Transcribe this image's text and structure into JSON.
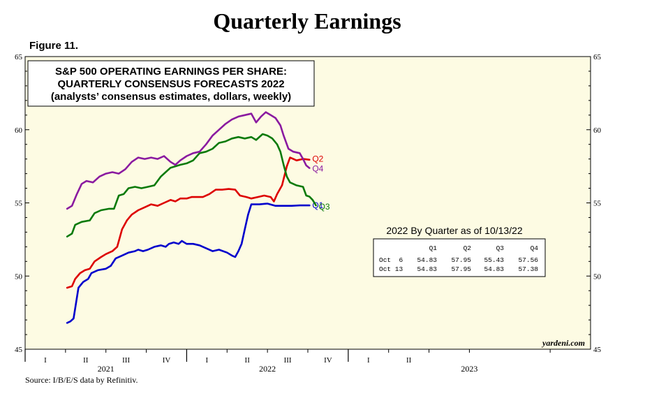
{
  "header": {
    "title": "Quarterly Earnings",
    "figure": "Figure 11.",
    "source": "Source: I/B/E/S data by Refinitiv."
  },
  "chart_data": {
    "type": "line",
    "box_lines": [
      "S&P 500 OPERATING EARNINGS PER SHARE:",
      "QUARTERLY CONSENSUS FORECASTS 2022",
      "(analysts’ consensus estimates, dollars, weekly)"
    ],
    "credit": "yardeni.com",
    "ylim": [
      45,
      65
    ],
    "yticks": [
      45,
      50,
      55,
      60,
      65
    ],
    "xlim": [
      2020.0,
      2023.5
    ],
    "quarter_ticks": [
      {
        "label": "I",
        "x": 2020.125
      },
      {
        "label": "II",
        "x": 2020.375
      },
      {
        "label": "III",
        "x": 2020.625
      },
      {
        "label": "IV",
        "x": 2020.875
      },
      {
        "label": "I",
        "x": 2021.125
      },
      {
        "label": "II",
        "x": 2021.375
      },
      {
        "label": "III",
        "x": 2021.625
      },
      {
        "label": "IV",
        "x": 2021.875
      },
      {
        "label": "I",
        "x": 2022.125
      },
      {
        "label": "II",
        "x": 2022.375
      }
    ],
    "year_labels": [
      {
        "label": "2021",
        "x": 2020.5
      },
      {
        "label": "2022",
        "x": 2021.5
      },
      {
        "label": "2023",
        "x": 2022.75
      }
    ],
    "series": [
      {
        "name": "Q1",
        "label": "Q1",
        "color": "#0000cc",
        "points": [
          [
            2020.26,
            46.8
          ],
          [
            2020.28,
            46.9
          ],
          [
            2020.3,
            47.1
          ],
          [
            2020.33,
            49.2
          ],
          [
            2020.36,
            49.6
          ],
          [
            2020.39,
            49.8
          ],
          [
            2020.41,
            50.2
          ],
          [
            2020.45,
            50.4
          ],
          [
            2020.5,
            50.5
          ],
          [
            2020.53,
            50.7
          ],
          [
            2020.56,
            51.2
          ],
          [
            2020.6,
            51.4
          ],
          [
            2020.64,
            51.6
          ],
          [
            2020.68,
            51.7
          ],
          [
            2020.7,
            51.8
          ],
          [
            2020.73,
            51.7
          ],
          [
            2020.76,
            51.8
          ],
          [
            2020.8,
            52.0
          ],
          [
            2020.84,
            52.1
          ],
          [
            2020.87,
            52.0
          ],
          [
            2020.89,
            52.2
          ],
          [
            2020.92,
            52.3
          ],
          [
            2020.95,
            52.2
          ],
          [
            2020.97,
            52.4
          ],
          [
            2021.0,
            52.2
          ],
          [
            2021.04,
            52.2
          ],
          [
            2021.08,
            52.1
          ],
          [
            2021.12,
            51.9
          ],
          [
            2021.16,
            51.7
          ],
          [
            2021.2,
            51.8
          ],
          [
            2021.25,
            51.6
          ],
          [
            2021.28,
            51.4
          ],
          [
            2021.3,
            51.3
          ],
          [
            2021.32,
            51.7
          ],
          [
            2021.34,
            52.2
          ],
          [
            2021.36,
            53.2
          ],
          [
            2021.38,
            54.2
          ],
          [
            2021.4,
            54.9
          ],
          [
            2021.42,
            54.9
          ],
          [
            2021.45,
            54.9
          ],
          [
            2021.5,
            54.95
          ],
          [
            2021.55,
            54.8
          ],
          [
            2021.6,
            54.8
          ],
          [
            2021.65,
            54.8
          ],
          [
            2021.7,
            54.83
          ],
          [
            2021.76,
            54.83
          ]
        ]
      },
      {
        "name": "Q2",
        "label": "Q2",
        "color": "#dd0000",
        "points": [
          [
            2020.26,
            49.2
          ],
          [
            2020.29,
            49.3
          ],
          [
            2020.31,
            49.8
          ],
          [
            2020.34,
            50.2
          ],
          [
            2020.37,
            50.4
          ],
          [
            2020.4,
            50.5
          ],
          [
            2020.43,
            51.0
          ],
          [
            2020.47,
            51.3
          ],
          [
            2020.5,
            51.5
          ],
          [
            2020.54,
            51.7
          ],
          [
            2020.57,
            52.0
          ],
          [
            2020.6,
            53.2
          ],
          [
            2020.63,
            53.8
          ],
          [
            2020.66,
            54.2
          ],
          [
            2020.7,
            54.5
          ],
          [
            2020.74,
            54.7
          ],
          [
            2020.78,
            54.9
          ],
          [
            2020.82,
            54.8
          ],
          [
            2020.86,
            55.0
          ],
          [
            2020.9,
            55.2
          ],
          [
            2020.93,
            55.1
          ],
          [
            2020.96,
            55.3
          ],
          [
            2021.0,
            55.3
          ],
          [
            2021.03,
            55.4
          ],
          [
            2021.06,
            55.4
          ],
          [
            2021.1,
            55.4
          ],
          [
            2021.14,
            55.6
          ],
          [
            2021.18,
            55.9
          ],
          [
            2021.22,
            55.9
          ],
          [
            2021.26,
            55.95
          ],
          [
            2021.3,
            55.9
          ],
          [
            2021.33,
            55.5
          ],
          [
            2021.37,
            55.4
          ],
          [
            2021.4,
            55.3
          ],
          [
            2021.44,
            55.4
          ],
          [
            2021.48,
            55.5
          ],
          [
            2021.52,
            55.4
          ],
          [
            2021.54,
            55.1
          ],
          [
            2021.56,
            55.6
          ],
          [
            2021.59,
            56.2
          ],
          [
            2021.62,
            57.5
          ],
          [
            2021.64,
            58.1
          ],
          [
            2021.66,
            58.0
          ],
          [
            2021.68,
            57.9
          ],
          [
            2021.72,
            58.0
          ],
          [
            2021.76,
            57.95
          ]
        ]
      },
      {
        "name": "Q3",
        "label": "Q3",
        "color": "#0a7a0a",
        "points": [
          [
            2020.26,
            52.7
          ],
          [
            2020.29,
            52.9
          ],
          [
            2020.31,
            53.5
          ],
          [
            2020.35,
            53.7
          ],
          [
            2020.4,
            53.8
          ],
          [
            2020.43,
            54.3
          ],
          [
            2020.47,
            54.5
          ],
          [
            2020.52,
            54.6
          ],
          [
            2020.55,
            54.6
          ],
          [
            2020.58,
            55.5
          ],
          [
            2020.61,
            55.6
          ],
          [
            2020.64,
            56.0
          ],
          [
            2020.68,
            56.1
          ],
          [
            2020.72,
            56.0
          ],
          [
            2020.76,
            56.1
          ],
          [
            2020.8,
            56.2
          ],
          [
            2020.84,
            56.8
          ],
          [
            2020.87,
            57.1
          ],
          [
            2020.9,
            57.4
          ],
          [
            2020.93,
            57.5
          ],
          [
            2020.96,
            57.6
          ],
          [
            2021.0,
            57.7
          ],
          [
            2021.04,
            57.9
          ],
          [
            2021.08,
            58.4
          ],
          [
            2021.12,
            58.5
          ],
          [
            2021.16,
            58.7
          ],
          [
            2021.2,
            59.1
          ],
          [
            2021.24,
            59.2
          ],
          [
            2021.28,
            59.4
          ],
          [
            2021.32,
            59.5
          ],
          [
            2021.36,
            59.4
          ],
          [
            2021.4,
            59.5
          ],
          [
            2021.43,
            59.3
          ],
          [
            2021.47,
            59.7
          ],
          [
            2021.5,
            59.6
          ],
          [
            2021.53,
            59.4
          ],
          [
            2021.56,
            59.0
          ],
          [
            2021.58,
            58.5
          ],
          [
            2021.6,
            57.6
          ],
          [
            2021.62,
            56.8
          ],
          [
            2021.64,
            56.4
          ],
          [
            2021.68,
            56.2
          ],
          [
            2021.72,
            56.1
          ],
          [
            2021.74,
            55.5
          ],
          [
            2021.76,
            55.43
          ],
          [
            2021.78,
            55.2
          ],
          [
            2021.8,
            54.83
          ]
        ]
      },
      {
        "name": "Q4",
        "label": "Q4",
        "color": "#8a1aa0",
        "points": [
          [
            2020.26,
            54.6
          ],
          [
            2020.29,
            54.8
          ],
          [
            2020.32,
            55.6
          ],
          [
            2020.35,
            56.3
          ],
          [
            2020.38,
            56.5
          ],
          [
            2020.42,
            56.4
          ],
          [
            2020.46,
            56.8
          ],
          [
            2020.5,
            57.0
          ],
          [
            2020.54,
            57.1
          ],
          [
            2020.58,
            57.0
          ],
          [
            2020.62,
            57.3
          ],
          [
            2020.66,
            57.8
          ],
          [
            2020.7,
            58.1
          ],
          [
            2020.74,
            58.0
          ],
          [
            2020.78,
            58.1
          ],
          [
            2020.82,
            58.0
          ],
          [
            2020.86,
            58.2
          ],
          [
            2020.9,
            57.8
          ],
          [
            2020.93,
            57.6
          ],
          [
            2020.96,
            57.9
          ],
          [
            2021.0,
            58.2
          ],
          [
            2021.04,
            58.4
          ],
          [
            2021.08,
            58.5
          ],
          [
            2021.12,
            59.0
          ],
          [
            2021.16,
            59.6
          ],
          [
            2021.2,
            60.0
          ],
          [
            2021.24,
            60.4
          ],
          [
            2021.28,
            60.7
          ],
          [
            2021.32,
            60.9
          ],
          [
            2021.36,
            61.0
          ],
          [
            2021.4,
            61.1
          ],
          [
            2021.43,
            60.5
          ],
          [
            2021.46,
            60.9
          ],
          [
            2021.49,
            61.2
          ],
          [
            2021.52,
            61.0
          ],
          [
            2021.55,
            60.8
          ],
          [
            2021.58,
            60.3
          ],
          [
            2021.6,
            59.6
          ],
          [
            2021.63,
            58.7
          ],
          [
            2021.66,
            58.5
          ],
          [
            2021.7,
            58.4
          ],
          [
            2021.72,
            58.0
          ],
          [
            2021.74,
            57.56
          ],
          [
            2021.76,
            57.38
          ]
        ]
      }
    ],
    "table": {
      "title": "2022 By Quarter as of 10/13/22",
      "columns": [
        "",
        "Q1",
        "Q2",
        "Q3",
        "Q4"
      ],
      "rows": [
        [
          "Oct  6",
          "54.83",
          "57.95",
          "55.43",
          "57.56"
        ],
        [
          "Oct 13",
          "54.83",
          "57.95",
          "54.83",
          "57.38"
        ]
      ]
    }
  }
}
